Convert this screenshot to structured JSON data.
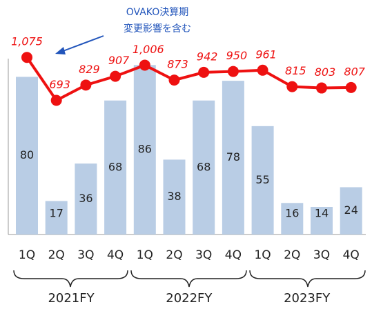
{
  "chart_data": {
    "type": "bar_line",
    "categories": [
      "1Q",
      "2Q",
      "3Q",
      "4Q",
      "1Q",
      "2Q",
      "3Q",
      "4Q",
      "1Q",
      "2Q",
      "3Q",
      "4Q"
    ],
    "groups": [
      "2021FY",
      "2022FY",
      "2023FY"
    ],
    "annotation": [
      "OVAKO決算期",
      "変更影響を含む"
    ],
    "series": [
      {
        "color": "#b9cde5",
        "values": [
          80,
          17,
          36,
          68,
          86,
          38,
          68,
          78,
          55,
          16,
          14,
          24
        ]
      },
      {
        "color": "#ee1111",
        "axis": "y2",
        "values": [
          1075,
          693,
          829,
          907,
          1006,
          873,
          942,
          950,
          961,
          815,
          803,
          807
        ],
        "value_labels": [
          "1,075",
          "693",
          "829",
          "907",
          "1,006",
          "873",
          "942",
          "950",
          "961",
          "815",
          "803",
          "807"
        ]
      }
    ],
    "ylim": [
      0,
      105
    ],
    "y2lim": [
      -500,
      1340
    ]
  }
}
